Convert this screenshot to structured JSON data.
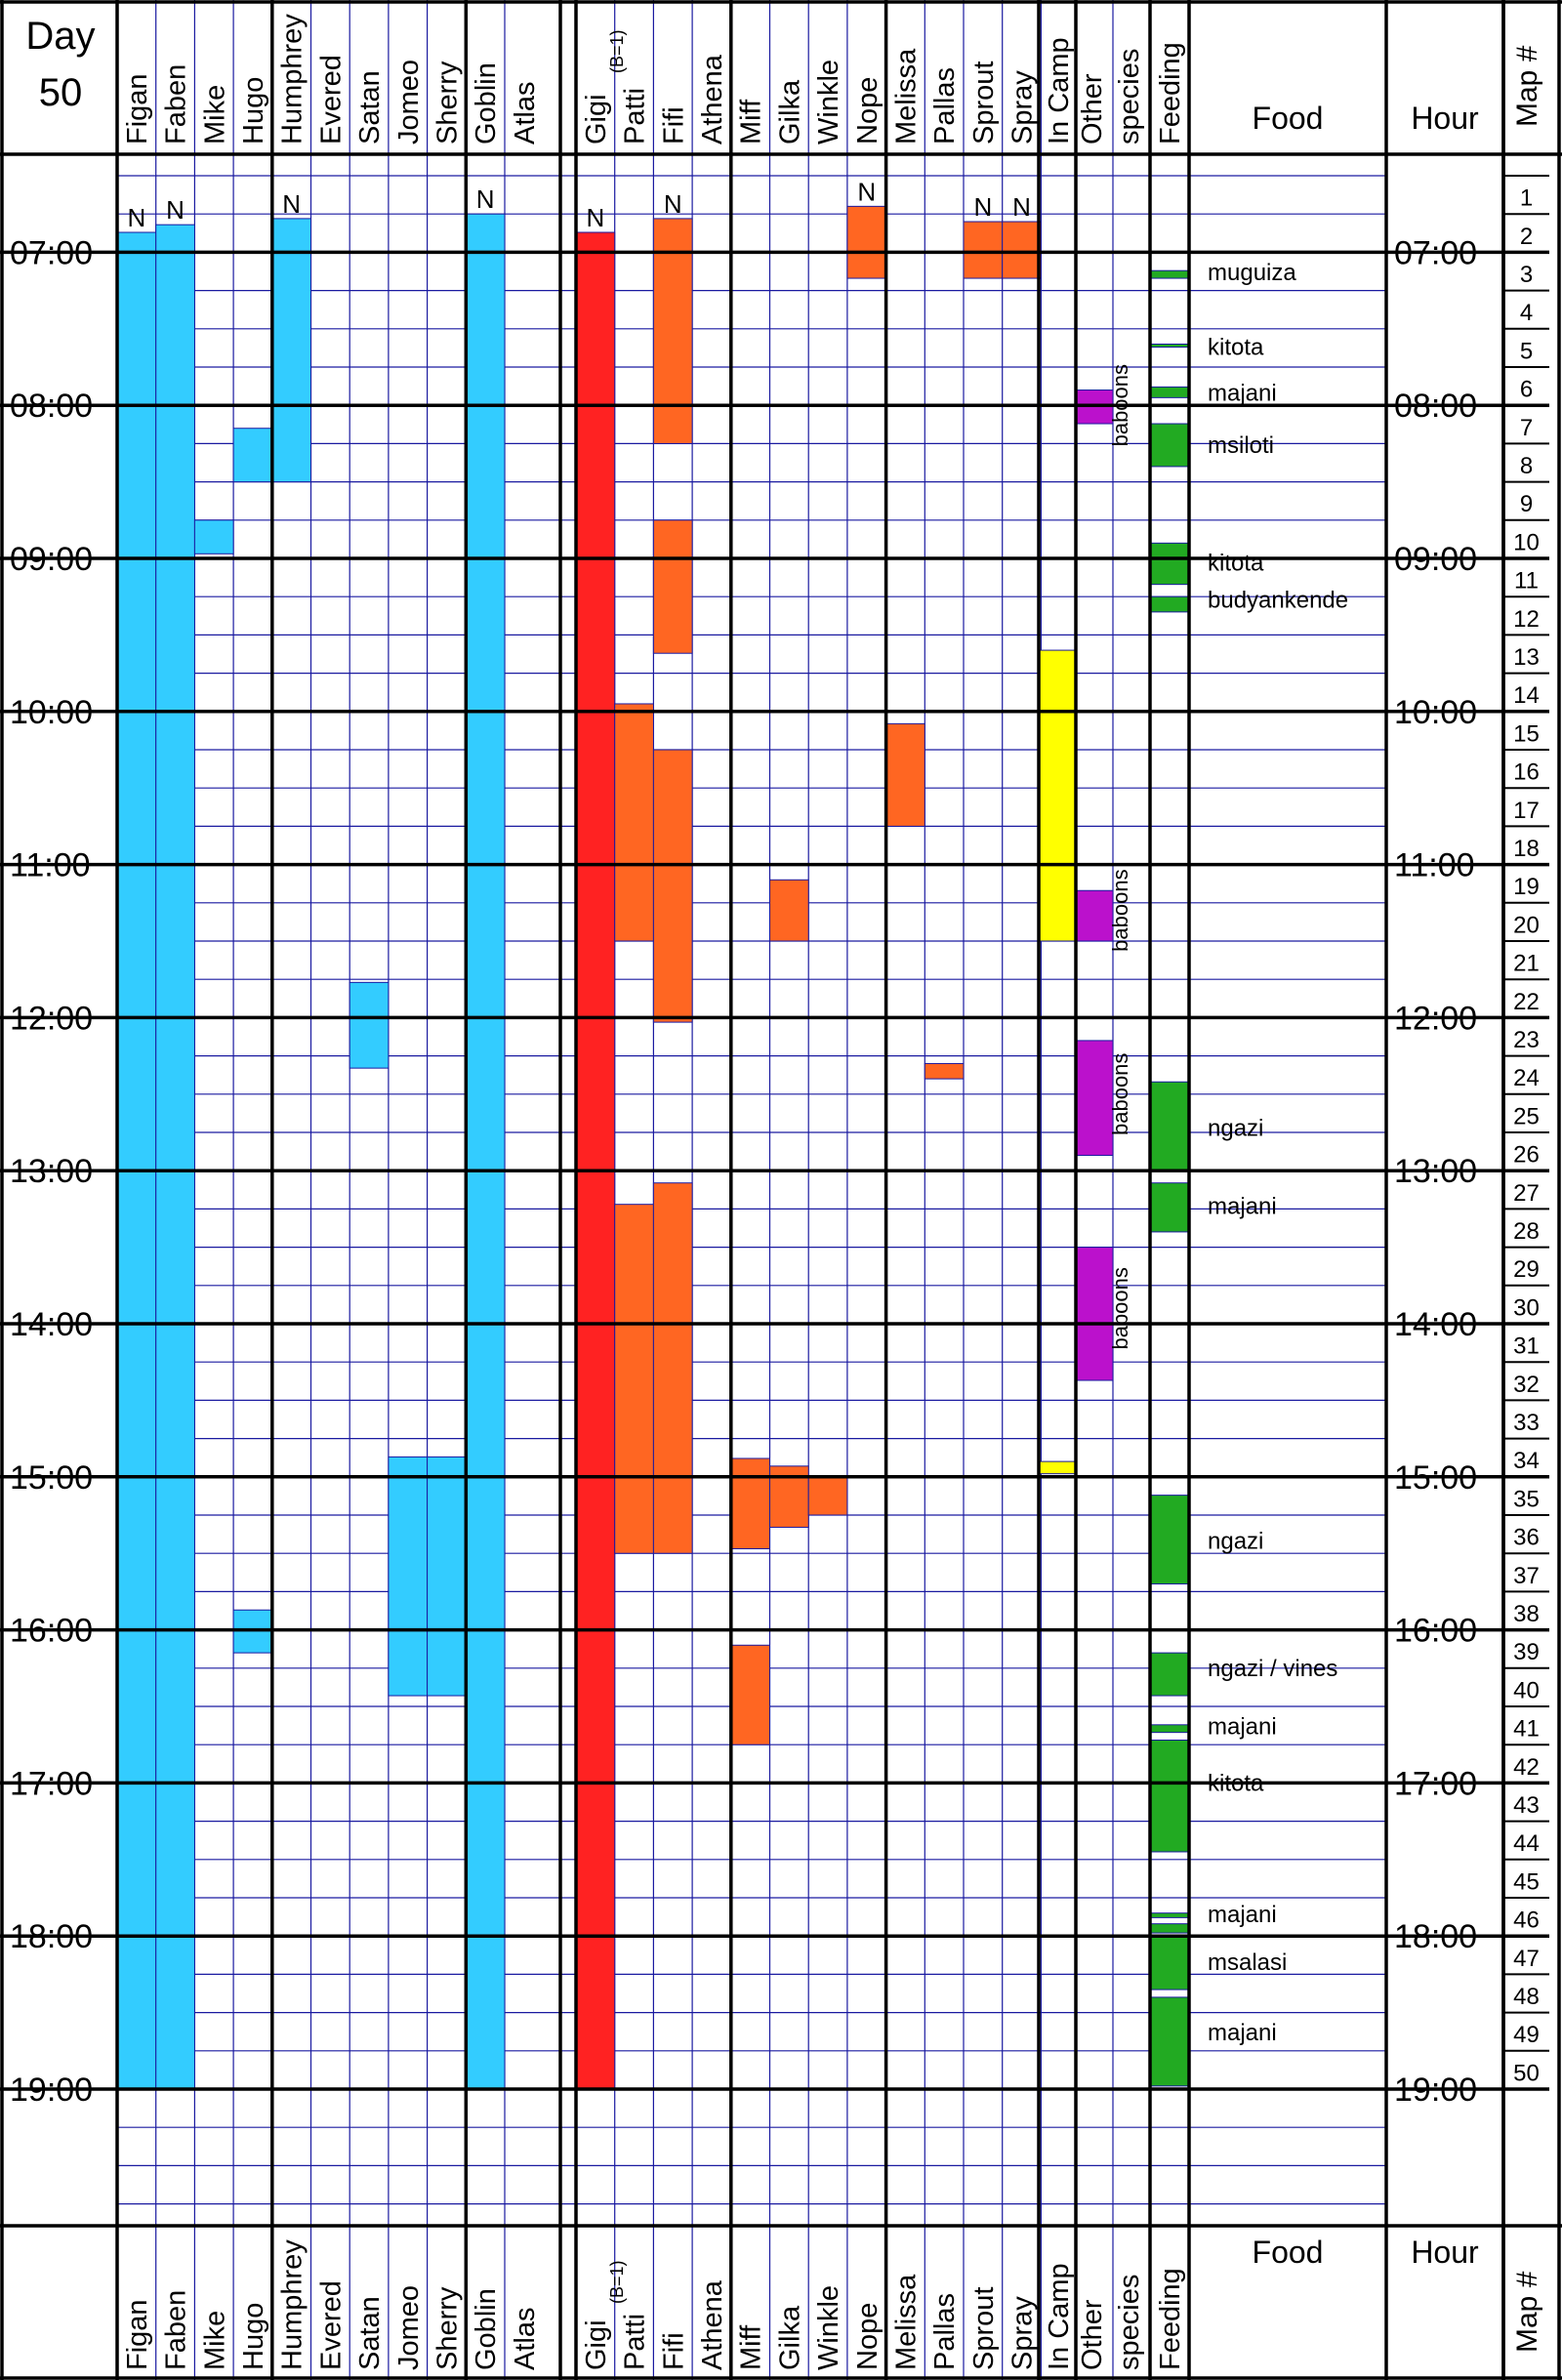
{
  "chart_data": {
    "type": "table",
    "title": "Day",
    "day": "50",
    "b_note": "(B=1)",
    "header_labels": {
      "food": "Food",
      "hour": "Hour",
      "map": "Map #",
      "n_marker": "N"
    },
    "hour_labels": [
      "07:00",
      "08:00",
      "09:00",
      "10:00",
      "11:00",
      "12:00",
      "13:00",
      "14:00",
      "15:00",
      "16:00",
      "17:00",
      "18:00",
      "19:00"
    ],
    "map_numbers": [
      "1",
      "2",
      "3",
      "4",
      "5",
      "6",
      "7",
      "8",
      "9",
      "10",
      "11",
      "12",
      "13",
      "14",
      "15",
      "16",
      "17",
      "18",
      "19",
      "20",
      "21",
      "22",
      "23",
      "24",
      "25",
      "26",
      "27",
      "28",
      "29",
      "30",
      "31",
      "32",
      "33",
      "34",
      "35",
      "36",
      "37",
      "38",
      "39",
      "40",
      "41",
      "42",
      "43",
      "44",
      "45",
      "46",
      "47",
      "48",
      "49",
      "50"
    ],
    "columns": [
      {
        "label": "Figan",
        "color": "#33ccff",
        "segments": [
          [
            6.87,
            19.0
          ]
        ],
        "nest": true
      },
      {
        "label": "Faben",
        "color": "#33ccff",
        "segments": [
          [
            6.82,
            19.0
          ]
        ],
        "nest": true
      },
      {
        "label": "Mike",
        "color": "#33ccff",
        "segments": [
          [
            8.75,
            8.97
          ]
        ],
        "nest": false
      },
      {
        "label": "Hugo",
        "color": "#33ccff",
        "segments": [
          [
            8.15,
            8.5
          ],
          [
            15.87,
            16.15
          ]
        ],
        "nest": false
      },
      {
        "label": "Humphrey",
        "color": "#33ccff",
        "segments": [
          [
            6.78,
            8.5
          ]
        ],
        "nest": true
      },
      {
        "label": "Evered",
        "color": "#33ccff",
        "segments": [],
        "nest": false
      },
      {
        "label": "Satan",
        "color": "#33ccff",
        "segments": [
          [
            11.77,
            12.33
          ]
        ],
        "nest": false
      },
      {
        "label": "Jomeo",
        "color": "#33ccff",
        "segments": [
          [
            14.87,
            16.43
          ]
        ],
        "nest": false
      },
      {
        "label": "Sherry",
        "color": "#33ccff",
        "segments": [
          [
            14.87,
            16.43
          ]
        ],
        "nest": false
      },
      {
        "label": "Goblin",
        "color": "#33ccff",
        "segments": [
          [
            6.75,
            19.0
          ]
        ],
        "nest": true
      },
      {
        "label": "Atlas",
        "color": "#33ccff",
        "segments": [],
        "nest": false
      },
      {
        "label": "Gigi",
        "color": "#ff2222",
        "segments": [
          [
            6.87,
            19.0
          ]
        ],
        "nest": true
      },
      {
        "label": "Patti",
        "color": "#ff6622",
        "segments": [
          [
            9.95,
            11.5
          ],
          [
            13.22,
            15.5
          ]
        ],
        "nest": false
      },
      {
        "label": "Fifi",
        "color": "#ff6622",
        "segments": [
          [
            6.78,
            8.25
          ],
          [
            8.75,
            9.62
          ],
          [
            10.25,
            12.03
          ],
          [
            13.08,
            15.5
          ]
        ],
        "nest": true
      },
      {
        "label": "Athena",
        "color": "#ff6622",
        "segments": [],
        "nest": false
      },
      {
        "label": "Miff",
        "color": "#ff6622",
        "segments": [
          [
            14.88,
            15.47
          ],
          [
            16.1,
            16.75
          ]
        ],
        "nest": false
      },
      {
        "label": "Gilka",
        "color": "#ff6622",
        "segments": [
          [
            11.1,
            11.5
          ],
          [
            14.93,
            15.33
          ]
        ],
        "nest": false
      },
      {
        "label": "Winkle",
        "color": "#ff6622",
        "segments": [
          [
            15.0,
            15.25
          ]
        ],
        "nest": false
      },
      {
        "label": "Nope",
        "color": "#ff6622",
        "segments": [
          [
            6.7,
            7.17
          ]
        ],
        "nest": true
      },
      {
        "label": "Melissa",
        "color": "#ff6622",
        "segments": [
          [
            10.08,
            10.75
          ]
        ],
        "nest": false
      },
      {
        "label": "Pallas",
        "color": "#ff6622",
        "segments": [
          [
            12.3,
            12.4
          ]
        ],
        "nest": false
      },
      {
        "label": "Sprout",
        "color": "#ff6622",
        "segments": [
          [
            6.8,
            7.17
          ]
        ],
        "nest": true
      },
      {
        "label": "Spray",
        "color": "#ff6622",
        "segments": [
          [
            6.8,
            7.17
          ]
        ],
        "nest": true
      },
      {
        "label": "In Camp",
        "color": "#ffff00",
        "segments": [
          [
            9.6,
            11.5
          ],
          [
            14.9,
            14.98
          ]
        ],
        "nest": false
      }
    ],
    "other_species_label": [
      "Other",
      "species"
    ],
    "other_species": [
      {
        "start": 7.9,
        "end": 8.12,
        "label": "baboons",
        "label_pos": 8.0,
        "color": "#bb11cc"
      },
      {
        "start": 11.17,
        "end": 11.5,
        "label": "baboons",
        "label_pos": 11.3,
        "color": "#bb11cc"
      },
      {
        "start": 12.15,
        "end": 12.9,
        "label": "baboons",
        "label_pos": 12.5,
        "color": "#bb11cc"
      },
      {
        "start": 13.5,
        "end": 14.37,
        "label": "baboons",
        "label_pos": 13.9,
        "color": "#bb11cc"
      }
    ],
    "feeding_label": "Feeding",
    "feeding_color": "#22aa22",
    "feeding": [
      [
        7.12,
        7.17
      ],
      [
        7.6,
        7.62
      ],
      [
        7.88,
        7.95
      ],
      [
        8.12,
        8.4
      ],
      [
        8.9,
        9.17
      ],
      [
        9.25,
        9.35
      ],
      [
        12.42,
        13.0
      ],
      [
        13.08,
        13.4
      ],
      [
        15.12,
        15.7
      ],
      [
        16.15,
        16.43
      ],
      [
        16.62,
        16.67
      ],
      [
        16.72,
        17.45
      ],
      [
        17.85,
        17.88
      ],
      [
        17.92,
        17.98
      ],
      [
        18.0,
        18.35
      ],
      [
        18.4,
        18.98
      ]
    ],
    "foods": [
      {
        "time": 7.13,
        "label": "muguiza"
      },
      {
        "time": 7.62,
        "label": "kitota"
      },
      {
        "time": 7.92,
        "label": "majani"
      },
      {
        "time": 8.26,
        "label": "msiloti"
      },
      {
        "time": 9.03,
        "label": "kitota"
      },
      {
        "time": 9.27,
        "label": "budyankende"
      },
      {
        "time": 12.72,
        "label": "ngazi"
      },
      {
        "time": 13.23,
        "label": "majani"
      },
      {
        "time": 15.42,
        "label": "ngazi"
      },
      {
        "time": 16.25,
        "label": "ngazi / vines"
      },
      {
        "time": 16.63,
        "label": "majani"
      },
      {
        "time": 17.0,
        "label": "kitota"
      },
      {
        "time": 17.86,
        "label": "majani"
      },
      {
        "time": 18.17,
        "label": "msalasi"
      },
      {
        "time": 18.63,
        "label": "majani"
      }
    ]
  }
}
